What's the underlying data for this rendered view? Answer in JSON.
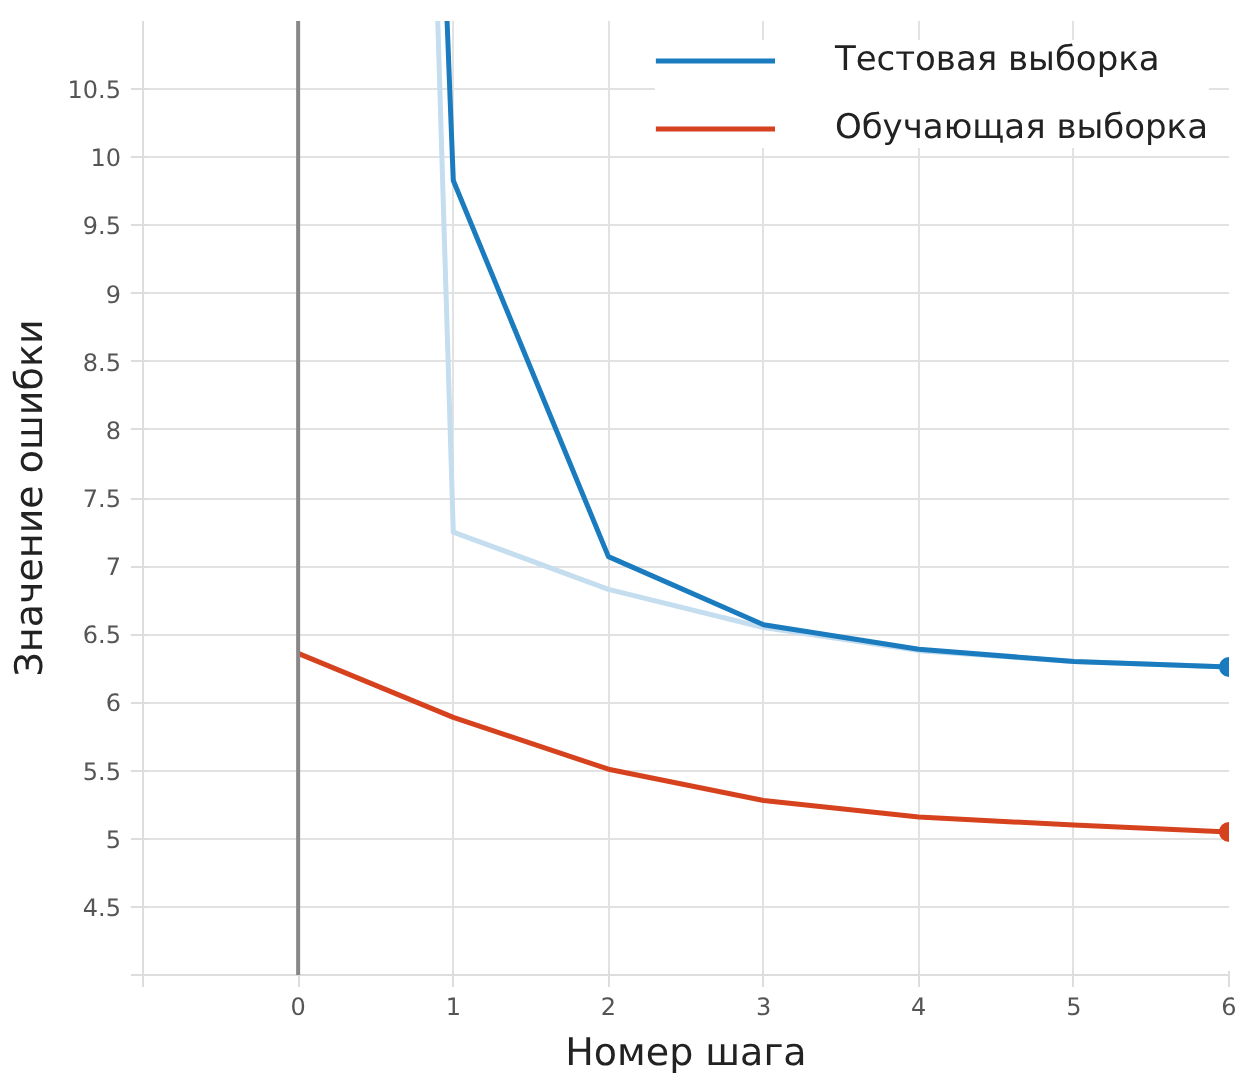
{
  "chart_data": {
    "type": "line",
    "xlabel": "Номер шага",
    "ylabel": "Значение ошибки",
    "xlim": [
      -1,
      6
    ],
    "ylim": [
      4,
      11
    ],
    "xticks": [
      {
        "value": -1,
        "label": null
      },
      0,
      1,
      2,
      3,
      4,
      5,
      6
    ],
    "yticks": [
      {
        "value": 4,
        "label": null
      },
      4.5,
      5,
      5.5,
      6,
      6.5,
      7,
      7.5,
      8,
      8.5,
      9,
      9.5,
      10,
      10.5
    ],
    "grid": true,
    "legend": "top right",
    "ref_lines": [
      {
        "axis": "x",
        "value": 0,
        "color": "#888888"
      }
    ],
    "series": [
      {
        "color": "#c4ddef",
        "x": [
          0.9,
          1,
          2,
          3,
          4,
          5,
          6
        ],
        "values": [
          11,
          7.25,
          6.83,
          6.55,
          6.38,
          6.3,
          6.26
        ]
      },
      {
        "name": "Тестовая выборка",
        "color": "#1a7bbf",
        "x": [
          0.96,
          1,
          2,
          3,
          4,
          5,
          6
        ],
        "values": [
          11,
          9.83,
          7.07,
          6.57,
          6.39,
          6.3,
          6.26
        ]
      },
      {
        "name": "Обучающая выборка",
        "color": "#d6411e",
        "x": [
          0,
          1,
          2,
          3,
          4,
          5,
          6
        ],
        "values": [
          6.36,
          5.89,
          5.51,
          5.28,
          5.16,
          5.1,
          5.05
        ]
      },
      {
        "type": "scatter",
        "marker": "circle",
        "color": "#1a7bbf",
        "x": [
          6
        ],
        "values": [
          6.26
        ]
      },
      {
        "type": "scatter",
        "marker": "circle",
        "color": "#d6411e",
        "x": [
          6
        ],
        "values": [
          5.05
        ]
      }
    ]
  }
}
